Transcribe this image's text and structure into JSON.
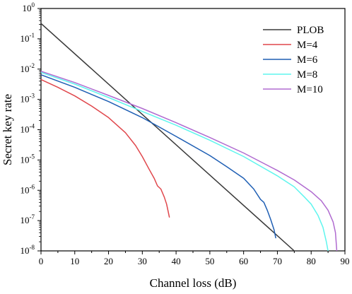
{
  "chart_data": {
    "type": "line",
    "xlabel": "Channel loss (dB)",
    "ylabel": "Secret key rate",
    "xlim": [
      0,
      90
    ],
    "ylim_exponent": [
      -8,
      0
    ],
    "y_scale": "log",
    "grid": false,
    "legend_position": "top-right",
    "x_ticks": [
      0,
      10,
      20,
      30,
      40,
      50,
      60,
      70,
      80,
      90
    ],
    "x_tick_labels": [
      "0",
      "10",
      "20",
      "30",
      "40",
      "50",
      "60",
      "70",
      "80",
      "90"
    ],
    "y_tick_exponents": [
      0,
      -1,
      -2,
      -3,
      -4,
      -5,
      -6,
      -7,
      -8
    ],
    "y_tick_base": "10",
    "series": [
      {
        "name": "PLOB",
        "color": "#3a3a3a",
        "points": [
          [
            0,
            0.32
          ],
          [
            75,
            1e-08
          ]
        ]
      },
      {
        "name": "M=4",
        "color": "#e0474c",
        "points": [
          [
            0,
            0.0045
          ],
          [
            5,
            0.0025
          ],
          [
            10,
            0.0013
          ],
          [
            15,
            0.0006
          ],
          [
            20,
            0.00025
          ],
          [
            25,
            8e-05
          ],
          [
            28,
            3e-05
          ],
          [
            30,
            1.3e-05
          ],
          [
            32,
            5e-06
          ],
          [
            33.5,
            2.5e-06
          ],
          [
            34.5,
            1.4e-06
          ],
          [
            35.5,
            1.1e-06
          ],
          [
            36.5,
            6e-07
          ],
          [
            37.2,
            3.5e-07
          ],
          [
            38,
            1.3e-07
          ]
        ]
      },
      {
        "name": "M=6",
        "color": "#1f5fb4",
        "points": [
          [
            0,
            0.0065
          ],
          [
            10,
            0.0025
          ],
          [
            20,
            0.00085
          ],
          [
            30,
            0.00025
          ],
          [
            40,
            6e-05
          ],
          [
            50,
            1.4e-05
          ],
          [
            55,
            6e-06
          ],
          [
            60,
            2.5e-06
          ],
          [
            63,
            1.1e-06
          ],
          [
            65,
            5e-07
          ],
          [
            66,
            4e-07
          ],
          [
            67,
            2.2e-07
          ],
          [
            68,
            1.1e-07
          ],
          [
            69,
            5e-08
          ],
          [
            69.5,
            2.7e-08
          ]
        ]
      },
      {
        "name": "M=8",
        "color": "#5ff5ee",
        "points": [
          [
            0,
            0.0078
          ],
          [
            10,
            0.0032
          ],
          [
            20,
            0.00115
          ],
          [
            30,
            0.0004
          ],
          [
            40,
            0.00014
          ],
          [
            50,
            4.5e-05
          ],
          [
            60,
            1.3e-05
          ],
          [
            70,
            3e-06
          ],
          [
            75,
            1.3e-06
          ],
          [
            78,
            6e-07
          ],
          [
            80,
            3.5e-07
          ],
          [
            82,
            1.5e-07
          ],
          [
            83.5,
            6e-08
          ],
          [
            84.5,
            2e-08
          ],
          [
            85,
            1e-08
          ]
        ]
      },
      {
        "name": "M=10",
        "color": "#b06bd0",
        "points": [
          [
            0,
            0.0085
          ],
          [
            10,
            0.0036
          ],
          [
            20,
            0.00135
          ],
          [
            30,
            0.0005
          ],
          [
            40,
            0.00017
          ],
          [
            50,
            5.5e-05
          ],
          [
            60,
            1.7e-05
          ],
          [
            70,
            4.5e-06
          ],
          [
            75,
            2.2e-06
          ],
          [
            80,
            9e-07
          ],
          [
            83,
            4.5e-07
          ],
          [
            85,
            2.2e-07
          ],
          [
            86.5,
            9e-08
          ],
          [
            87.2,
            4e-08
          ],
          [
            87.6,
            1e-08
          ]
        ]
      }
    ]
  }
}
